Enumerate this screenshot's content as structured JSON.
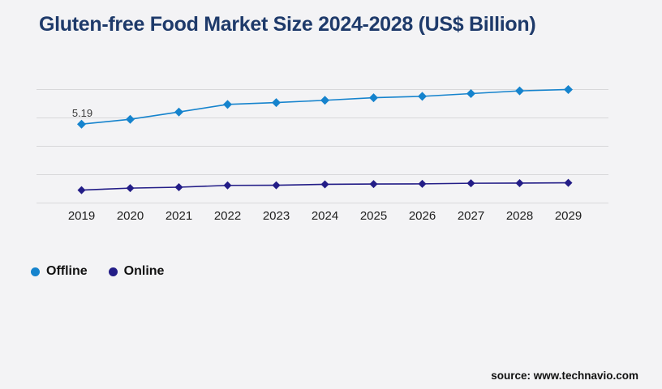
{
  "title": "Gluten-free Food Market Size 2024-2028 (US$ Billion)",
  "source": "source: www.technavio.com",
  "colors": {
    "background": "#f3f3f5",
    "title": "#1e3a6a",
    "gridline": "#d8d8da",
    "axis_label": "#202020",
    "data_label": "#3a3a3a",
    "offline": "#1583cd",
    "online": "#231d87"
  },
  "legend": [
    {
      "label": "Offline",
      "color": "#1583cd"
    },
    {
      "label": "Online",
      "color": "#231d87"
    }
  ],
  "chart_data": {
    "type": "line",
    "title": "Gluten-free Food Market Size 2024-2028 (US$ Billion)",
    "x": [
      2019,
      2020,
      2021,
      2022,
      2023,
      2024,
      2025,
      2026,
      2027,
      2028,
      2029
    ],
    "series": [
      {
        "name": "Offline",
        "color": "#1583cd",
        "values": [
          5.19,
          5.51,
          5.99,
          6.49,
          6.61,
          6.76,
          6.93,
          7.02,
          7.2,
          7.38,
          7.47
        ]
      },
      {
        "name": "Online",
        "color": "#231d87",
        "values": [
          0.85,
          0.98,
          1.04,
          1.16,
          1.17,
          1.23,
          1.25,
          1.26,
          1.3,
          1.31,
          1.33
        ]
      }
    ],
    "data_labels": [
      {
        "series": "Offline",
        "x": 2019,
        "text": "5.19"
      }
    ],
    "xlabel": "",
    "ylabel": "",
    "ylim": [
      0,
      7.9
    ],
    "y_axis_labels_visible": false,
    "grid": "horizontal",
    "gridline_count": 5,
    "marker": "diamond",
    "legend_position": "bottom-left"
  }
}
